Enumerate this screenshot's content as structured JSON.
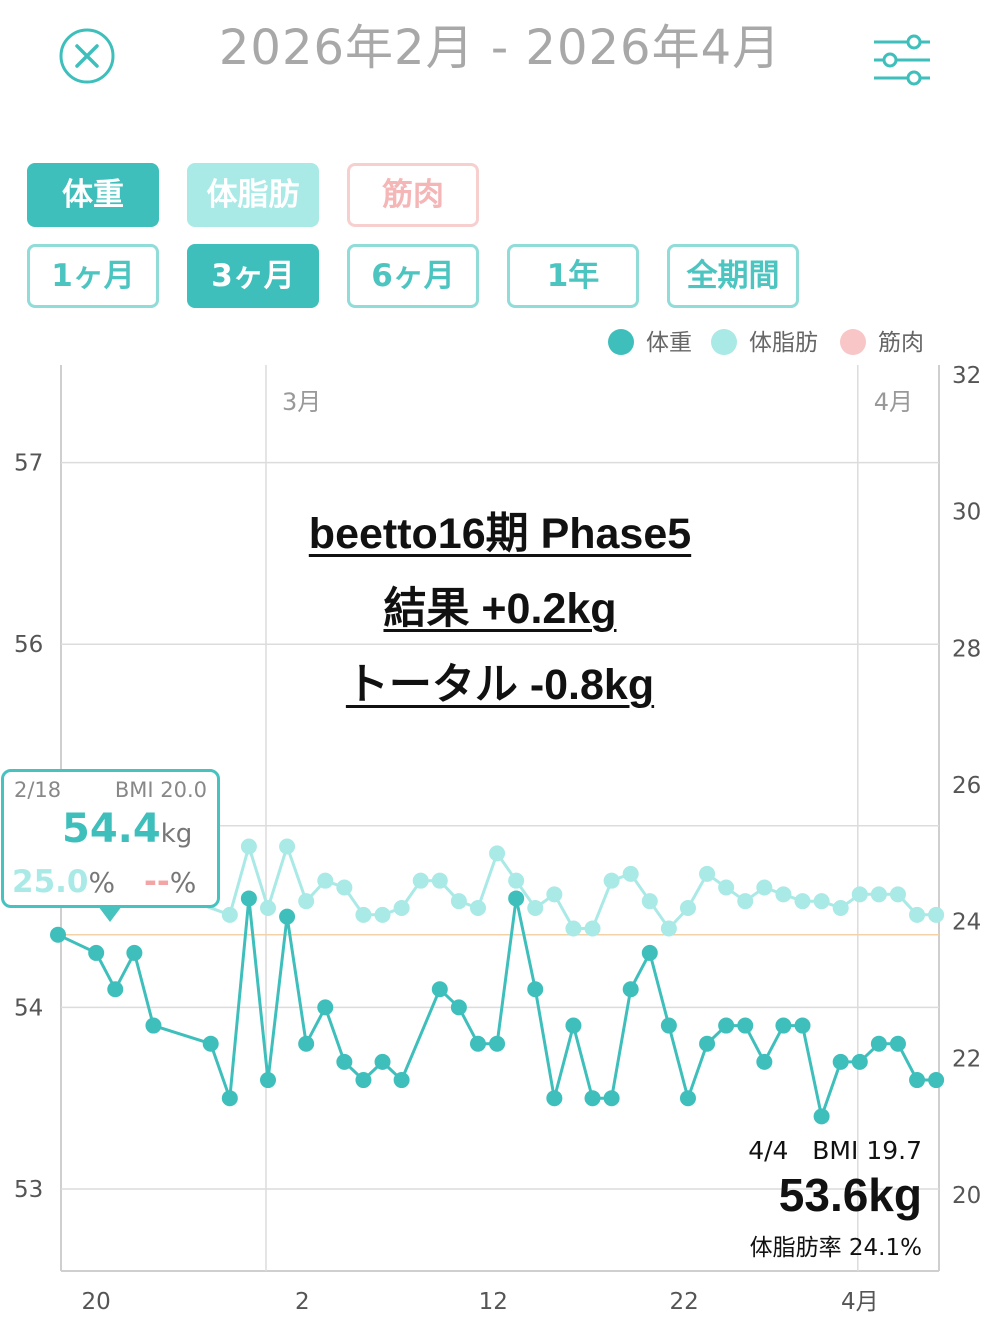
{
  "header": {
    "title": "2026年2月 - 2026年4月",
    "close_icon": "close-circle-icon",
    "settings_icon": "sliders-icon"
  },
  "metric_tabs": [
    "体重",
    "体脂肪",
    "筋肉"
  ],
  "period_tabs": [
    "1ヶ月",
    "3ヶ月",
    "6ヶ月",
    "1年",
    "全期間"
  ],
  "selected_period": "3ヶ月",
  "legend": [
    {
      "label": "体重",
      "color": "#3ebfbb"
    },
    {
      "label": "体脂肪",
      "color": "#a9e9e6"
    },
    {
      "label": "筋肉",
      "color": "#f8c6c6"
    }
  ],
  "colors": {
    "weight": "#3ebfbb",
    "fat": "#a9e9e6",
    "muscle": "#f8c6c6",
    "grid": "#dcdcdc",
    "reference": "#f3d2a8"
  },
  "annotation": {
    "line1": "beetto16期 Phase5",
    "line2": "結果 +0.2kg",
    "line3": "トータル -0.8kg"
  },
  "tooltip": {
    "date": "2/18",
    "bmi": "BMI 20.0",
    "weight": "54.4",
    "weight_unit": "kg",
    "fat": "25.0",
    "fat_unit": "%",
    "muscle": "--",
    "muscle_unit": "%"
  },
  "latest": {
    "date": "4/4",
    "bmi": "BMI 19.7",
    "weight": "53.6kg",
    "fat": "体脂肪率 24.1%"
  },
  "chart_data": {
    "type": "line",
    "x_ticks": [
      "20",
      "2",
      "12",
      "22",
      "4月"
    ],
    "month_labels": [
      "3月",
      "4月"
    ],
    "left_axis": {
      "ticks": [
        "53",
        "54",
        "56",
        "57"
      ],
      "range": [
        52.6,
        57.5
      ]
    },
    "right_axis": {
      "ticks": [
        "20",
        "22",
        "24",
        "26",
        "28",
        "30",
        "32"
      ],
      "range": [
        19.0,
        32.0
      ]
    },
    "x_range_days": [
      0,
      46
    ],
    "reference_line_weight": 54.4,
    "series": [
      {
        "name": "体重",
        "axis": "left",
        "x": [
          0,
          2,
          3,
          4,
          5,
          8,
          9,
          10,
          11,
          12,
          13,
          14,
          15,
          16,
          17,
          18,
          20,
          21,
          22,
          23,
          24,
          25,
          26,
          27,
          28,
          29,
          30,
          31,
          32,
          33,
          34,
          35,
          36,
          37,
          38,
          39,
          40,
          41,
          42,
          43,
          44,
          45,
          46
        ],
        "values": [
          54.4,
          54.3,
          54.1,
          54.3,
          53.9,
          53.8,
          53.5,
          54.6,
          53.6,
          54.5,
          53.8,
          54.0,
          53.7,
          53.6,
          53.7,
          53.6,
          54.1,
          54.0,
          53.8,
          53.8,
          54.6,
          54.1,
          53.5,
          53.9,
          53.5,
          53.5,
          54.1,
          54.3,
          53.9,
          53.5,
          53.8,
          53.9,
          53.9,
          53.7,
          53.9,
          53.9,
          53.4,
          53.7,
          53.7,
          53.8,
          53.8,
          53.6,
          53.6
        ]
      },
      {
        "name": "体脂肪",
        "axis": "right",
        "x": [
          0,
          9,
          10,
          11,
          12,
          13,
          14,
          15,
          16,
          17,
          18,
          19,
          20,
          21,
          22,
          23,
          24,
          25,
          26,
          27,
          28,
          29,
          30,
          31,
          32,
          33,
          34,
          35,
          36,
          37,
          38,
          39,
          40,
          41,
          42,
          43,
          44,
          45,
          46
        ],
        "values": [
          25.0,
          24.1,
          25.1,
          24.2,
          25.1,
          24.3,
          24.6,
          24.5,
          24.1,
          24.1,
          24.2,
          24.6,
          24.6,
          24.3,
          24.2,
          25.0,
          24.6,
          24.2,
          24.4,
          23.9,
          23.9,
          24.6,
          24.7,
          24.3,
          23.9,
          24.2,
          24.7,
          24.5,
          24.3,
          24.5,
          24.4,
          24.3,
          24.3,
          24.2,
          24.4,
          24.4,
          24.4,
          24.1,
          24.1
        ]
      }
    ]
  }
}
